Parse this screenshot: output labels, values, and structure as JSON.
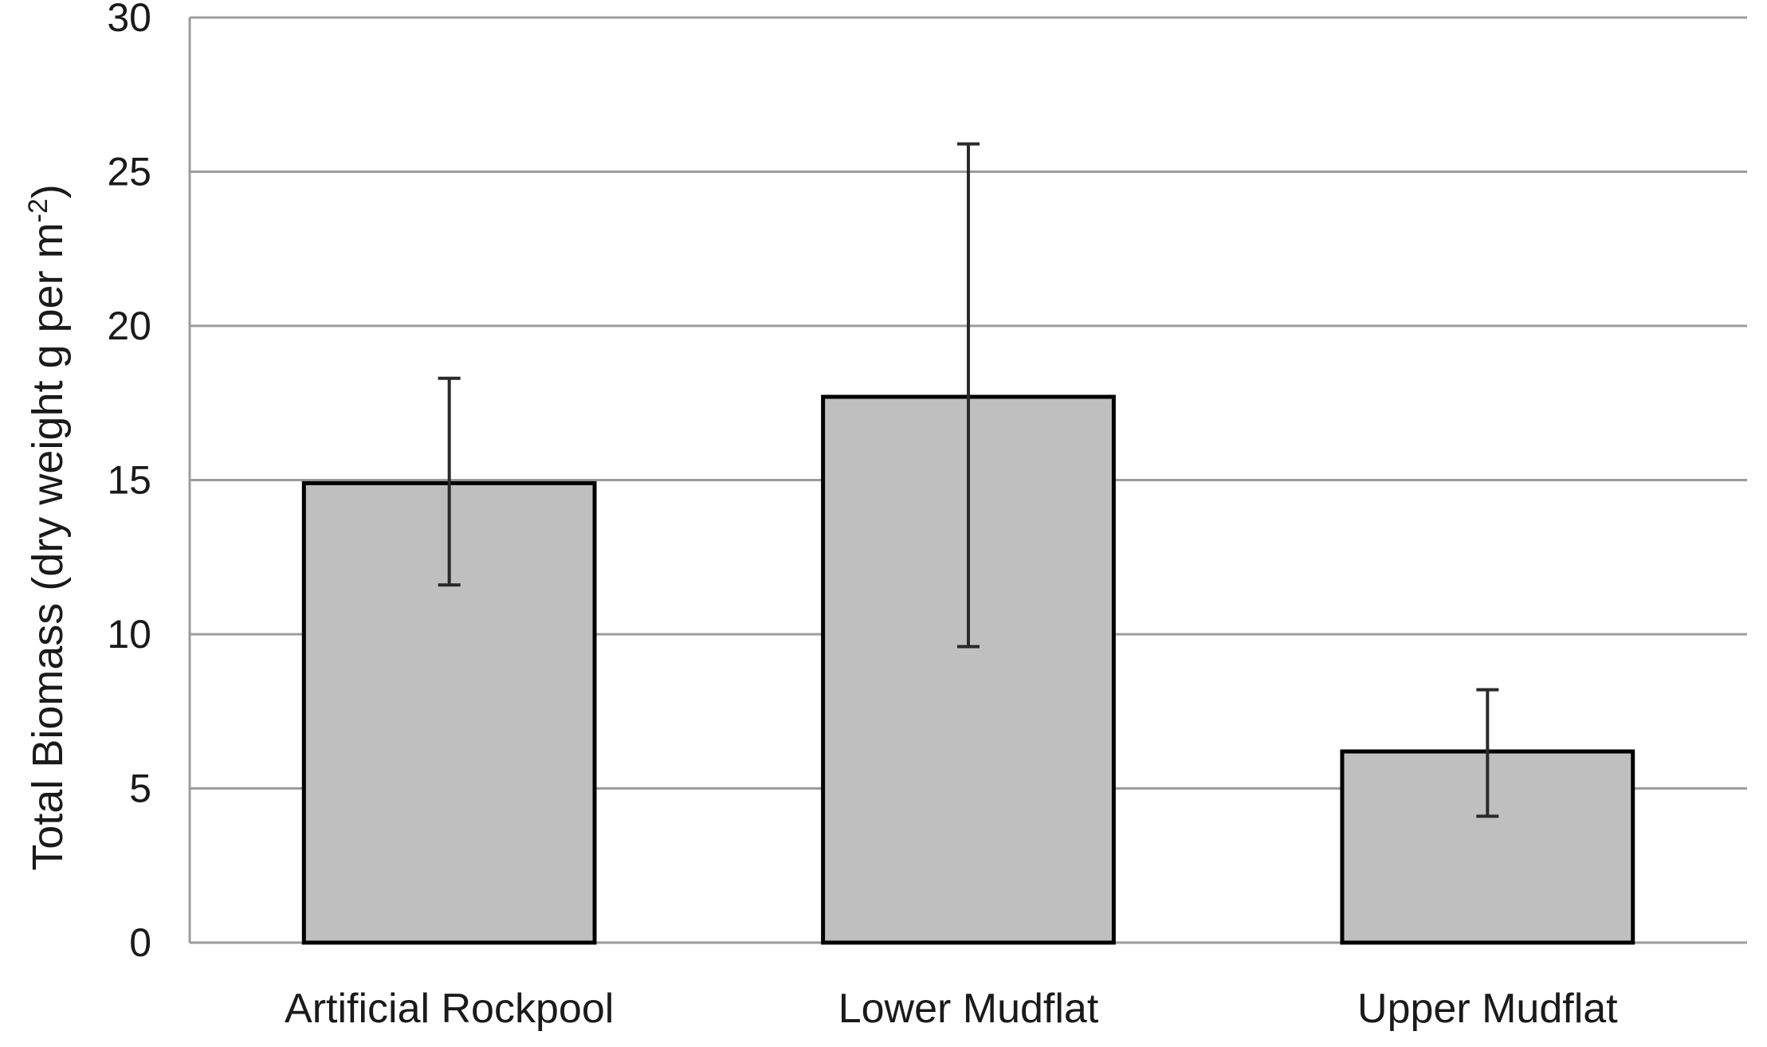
{
  "chart_data": {
    "type": "bar",
    "title": "",
    "xlabel": "",
    "ylabel": "Total Biomass (dry weight g per m",
    "ylabel_superscript": "-2",
    "ylabel_suffix": ")",
    "categories": [
      "Artificial Rockpool",
      "Lower Mudflat",
      "Upper Mudflat"
    ],
    "values": [
      14.9,
      17.7,
      6.2
    ],
    "error_low": [
      11.6,
      9.6,
      4.1
    ],
    "error_high": [
      18.3,
      25.9,
      8.2
    ],
    "ylim": [
      0,
      30
    ],
    "yticks": [
      0,
      5,
      10,
      15,
      20,
      25,
      30
    ],
    "grid": true,
    "legend": false,
    "colors": {
      "bar_fill": "#bfbfbf",
      "bar_edge": "#000000",
      "gridline": "#9c9c9c",
      "error_bar": "#2a2a2a"
    }
  }
}
